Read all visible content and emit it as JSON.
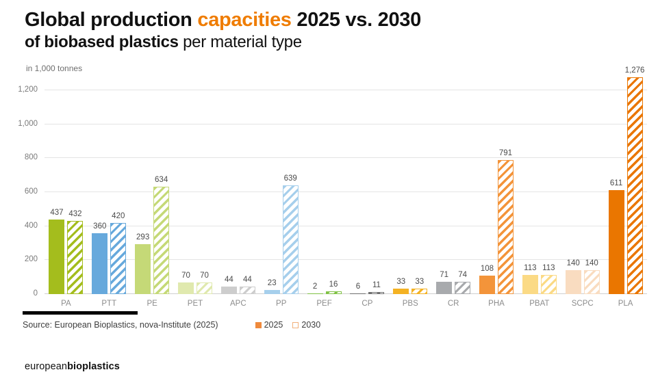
{
  "header": {
    "title_pre": "Global production ",
    "title_highlight": "capacities",
    "title_post": " 2025 vs. 2030",
    "subtitle_bold": "of biobased plastics",
    "subtitle_rest": " per material type",
    "accent_color": "#ef7c00"
  },
  "unit_label": "in 1,000 tonnes",
  "source_text": "Source: European Bioplastics, nova-Institute (2025)",
  "legend": {
    "items": [
      {
        "label": "2025",
        "style": "solid",
        "color": "#ef8a3c"
      },
      {
        "label": "2030",
        "style": "hatched",
        "color": "#f2b07a"
      }
    ]
  },
  "logo": {
    "regular": "european",
    "bold": "bioplastics"
  },
  "chart_data": {
    "type": "bar",
    "title": "Global production capacities 2025 vs. 2030 of biobased plastics per material type",
    "ylabel": "in 1,000 tonnes",
    "xlabel": "material type",
    "grid": true,
    "legend_position": "bottom",
    "ylim": [
      0,
      1280
    ],
    "yticks": [
      0,
      200,
      400,
      600,
      800,
      1000,
      1200
    ],
    "ytick_labels": [
      "0",
      "200",
      "400",
      "600",
      "800",
      "1,000",
      "1,200"
    ],
    "categories": [
      "PA",
      "PTT",
      "PE",
      "PET",
      "APC",
      "PP",
      "PEF",
      "CP",
      "PBS",
      "CR",
      "PHA",
      "PBAT",
      "SCPC",
      "PLA"
    ],
    "series": [
      {
        "name": "2025",
        "style": "solid",
        "values": [
          437,
          360,
          293,
          70,
          44,
          23,
          2,
          6,
          33,
          71,
          108,
          113,
          140,
          611
        ]
      },
      {
        "name": "2030",
        "style": "hatched",
        "values": [
          432,
          420,
          634,
          70,
          44,
          639,
          16,
          11,
          33,
          74,
          791,
          113,
          140,
          1276
        ]
      }
    ],
    "bar_colors": [
      "#a4bd1d",
      "#67a9dc",
      "#c5d977",
      "#e0e9ae",
      "#cdcdcd",
      "#a6cfec",
      "#7fc143",
      "#6e6e6e",
      "#f4b223",
      "#a8aaad",
      "#f3943a",
      "#fbda85",
      "#f9dcc0",
      "#ea7600"
    ]
  }
}
